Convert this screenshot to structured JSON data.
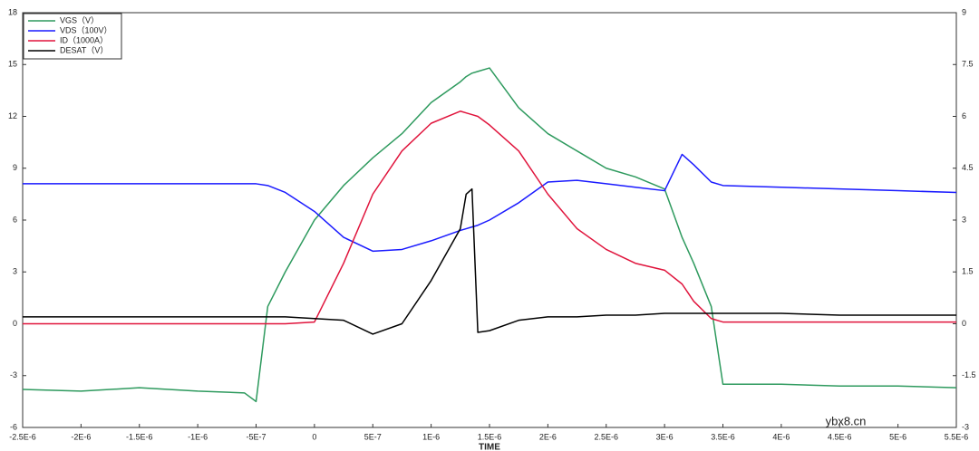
{
  "chart_data": {
    "type": "line",
    "xlabel": "TIME",
    "watermark": "ybx8.cn",
    "x": [
      -2.5e-06,
      -2e-06,
      -1.5e-06,
      -1e-06,
      -6e-07,
      -5e-07,
      -4e-07,
      -2.5e-07,
      0,
      2.5e-07,
      5e-07,
      7.5e-07,
      1e-06,
      1.25e-06,
      1.3e-06,
      1.35e-06,
      1.4e-06,
      1.5e-06,
      1.75e-06,
      2e-06,
      2.25e-06,
      2.5e-06,
      2.75e-06,
      3e-06,
      3.15e-06,
      3.25e-06,
      3.4e-06,
      3.5e-06,
      4e-06,
      4.5e-06,
      5e-06,
      5.5e-06
    ],
    "series": [
      {
        "name": "VGS（V）",
        "color": "#2e9a5e",
        "values": [
          -3.8,
          -3.9,
          -3.7,
          -3.9,
          -4.0,
          -4.5,
          1,
          3,
          6,
          8,
          9.6,
          11,
          12.8,
          14,
          14.3,
          14.5,
          14.6,
          14.8,
          12.5,
          11,
          10,
          9,
          8.5,
          7.8,
          5,
          3.5,
          1,
          -3.5,
          -3.5,
          -3.6,
          -3.6,
          -3.7
        ]
      },
      {
        "name": "VDS（100V）",
        "color": "#1a1aff",
        "values": [
          8.1,
          8.1,
          8.1,
          8.1,
          8.1,
          8.1,
          8.0,
          7.6,
          6.5,
          5,
          4.2,
          4.3,
          4.8,
          5.4,
          5.5,
          5.6,
          5.7,
          6,
          7,
          8.2,
          8.3,
          8.1,
          7.9,
          7.7,
          9.8,
          9.2,
          8.2,
          8.0,
          7.9,
          7.8,
          7.7,
          7.6
        ]
      },
      {
        "name": "ID（1000A）",
        "color": "#e0143c",
        "values": [
          0,
          0,
          0,
          0,
          0,
          0,
          0,
          0,
          0.1,
          3.5,
          7.5,
          10,
          11.6,
          12.3,
          12.2,
          12.1,
          12.0,
          11.5,
          10,
          7.5,
          5.5,
          4.3,
          3.5,
          3.1,
          2.3,
          1.3,
          0.3,
          0.1,
          0.1,
          0.1,
          0.1,
          0.1
        ]
      },
      {
        "name": "DESAT（V）",
        "color": "#000000",
        "values": [
          0.4,
          0.4,
          0.4,
          0.4,
          0.4,
          0.4,
          0.4,
          0.4,
          0.3,
          0.2,
          -0.6,
          0,
          2.5,
          5.5,
          7.5,
          7.8,
          -0.5,
          -0.4,
          0.2,
          0.4,
          0.4,
          0.5,
          0.5,
          0.6,
          0.6,
          0.6,
          0.6,
          0.6,
          0.6,
          0.5,
          0.5,
          0.5
        ]
      }
    ],
    "xlim": [
      -2.5e-06,
      5.5e-06
    ],
    "xticks": [
      {
        "value": -2.5e-06,
        "label": "-2.5E-6"
      },
      {
        "value": -2e-06,
        "label": "-2E-6"
      },
      {
        "value": -1.5e-06,
        "label": "-1.5E-6"
      },
      {
        "value": -1e-06,
        "label": "-1E-6"
      },
      {
        "value": -5e-07,
        "label": "-5E-7"
      },
      0,
      {
        "value": 5e-07,
        "label": "5E-7"
      },
      {
        "value": 1e-06,
        "label": "1E-6"
      },
      {
        "value": 1.5e-06,
        "label": "1.5E-6"
      },
      {
        "value": 2e-06,
        "label": "2E-6"
      },
      {
        "value": 2.5e-06,
        "label": "2.5E-6"
      },
      {
        "value": 3e-06,
        "label": "3E-6"
      },
      {
        "value": 3.5e-06,
        "label": "3.5E-6"
      },
      {
        "value": 4e-06,
        "label": "4E-6"
      },
      {
        "value": 4.5e-06,
        "label": "4.5E-6"
      },
      {
        "value": 5e-06,
        "label": "5E-6"
      },
      {
        "value": 5.5e-06,
        "label": "5.5E-6"
      }
    ],
    "ylim": [
      -6,
      18
    ],
    "yticks": [
      -6,
      -3,
      0,
      3,
      6,
      9,
      12,
      15,
      18
    ],
    "y2lim": [
      -3,
      9
    ],
    "y2ticks": [
      -3,
      -1.5,
      0,
      1.5,
      3,
      4.5,
      6,
      7.5,
      9
    ],
    "legend": "upper left"
  }
}
